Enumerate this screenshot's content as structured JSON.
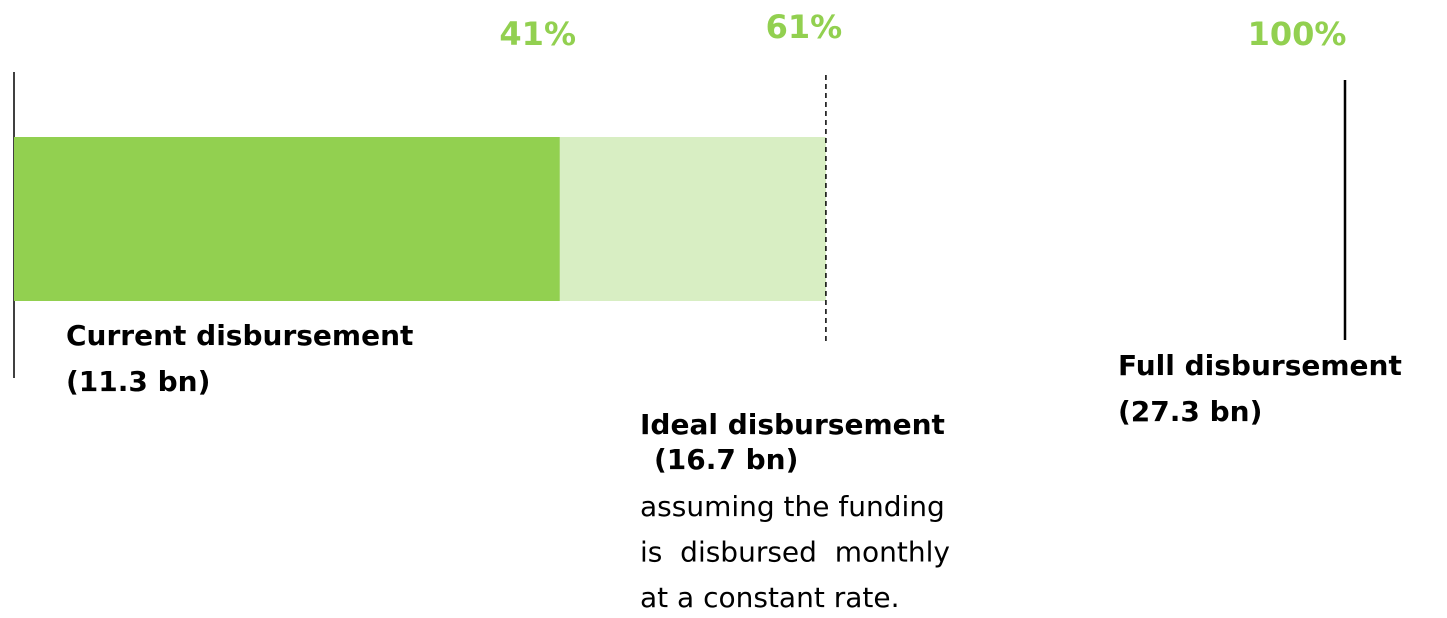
{
  "chart_data": {
    "type": "bar",
    "xlim": [
      0,
      100
    ],
    "categories": [
      "Current disbursement",
      "Ideal disbursement"
    ],
    "amounts": [
      "(11.3 bn)",
      "(16.7 bn)"
    ],
    "values": [
      41,
      61
    ],
    "value_labels": [
      "41%",
      "61%"
    ],
    "colors": [
      "#92d050",
      "#d8eec3"
    ],
    "note": [
      "assuming the funding",
      "is  disbursed  monthly",
      "at a constant rate."
    ],
    "target": {
      "name": "Full disbursement",
      "amount": "(27.3 bn)",
      "value": 100,
      "label": "100%"
    },
    "label_color": "#92d050"
  }
}
